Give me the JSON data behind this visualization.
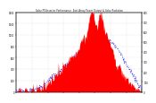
{
  "title": "Solar PV/Inverter Performance  East Array Power Output & Solar Radiation",
  "background_color": "#ffffff",
  "plot_bg_color": "#ffffff",
  "grid_color": "#aaaaaa",
  "red_color": "#ff0000",
  "blue_color": "#0000dd",
  "n_points": 288,
  "y_max_radiation": 800,
  "y_max_power": 1400,
  "left_ticks": [
    0,
    200,
    400,
    600,
    800,
    1000,
    1200,
    1400
  ],
  "right_ticks": [
    0,
    100,
    200,
    300,
    400,
    500,
    600,
    700,
    800
  ]
}
